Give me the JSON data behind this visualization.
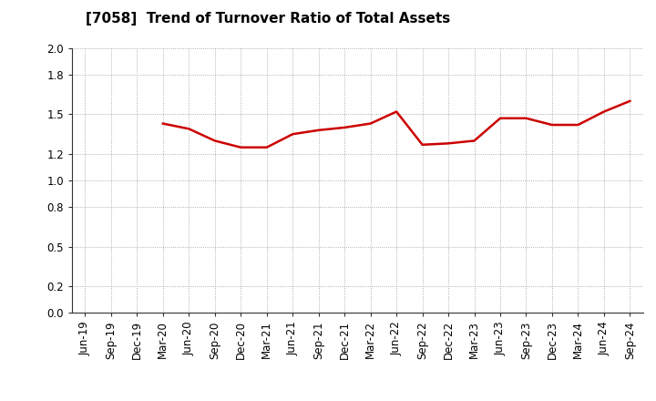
{
  "title": "[7058]  Trend of Turnover Ratio of Total Assets",
  "x_labels": [
    "Jun-19",
    "Sep-19",
    "Dec-19",
    "Mar-20",
    "Jun-20",
    "Sep-20",
    "Dec-20",
    "Mar-21",
    "Jun-21",
    "Sep-21",
    "Dec-21",
    "Mar-22",
    "Jun-22",
    "Sep-22",
    "Dec-22",
    "Mar-23",
    "Jun-23",
    "Sep-23",
    "Dec-23",
    "Mar-24",
    "Jun-24",
    "Sep-24"
  ],
  "y_values": [
    null,
    null,
    null,
    1.43,
    1.39,
    1.3,
    1.25,
    1.25,
    1.35,
    1.38,
    1.4,
    1.43,
    1.52,
    1.27,
    1.28,
    1.3,
    1.47,
    1.47,
    1.42,
    1.42,
    1.52,
    1.6
  ],
  "line_color": "#cc0000",
  "line_width": 1.8,
  "ylim": [
    0.0,
    2.0
  ],
  "yticks": [
    0.0,
    0.2,
    0.5,
    0.8,
    1.0,
    1.2,
    1.5,
    1.8,
    2.0
  ],
  "background_color": "#ffffff",
  "grid_color": "#999999",
  "title_fontsize": 11,
  "tick_fontsize": 8.5
}
